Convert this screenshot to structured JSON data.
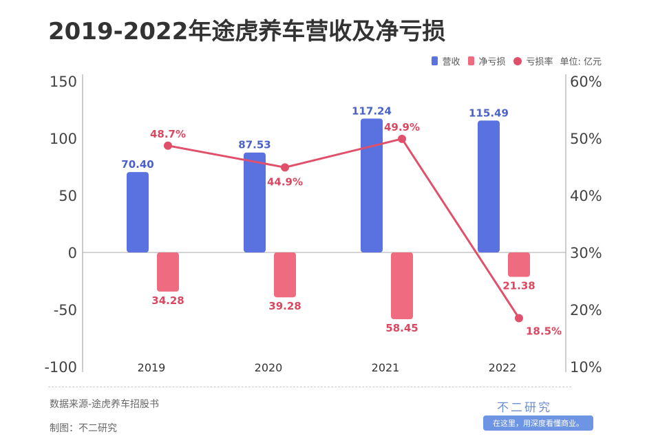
{
  "chart_data": {
    "type": "bar",
    "title": "2019-2022年途虎养车营收及净亏损",
    "categories": [
      "2019",
      "2020",
      "2021",
      "2022"
    ],
    "series": [
      {
        "name": "营收",
        "values": [
          70.4,
          87.53,
          117.24,
          115.49
        ],
        "labels": [
          "70.40",
          "87.53",
          "117.24",
          "115.49"
        ],
        "color": "#5a72e0"
      },
      {
        "name": "净亏损",
        "values": [
          -34.28,
          -39.28,
          -58.45,
          -21.38
        ],
        "labels": [
          "34.28",
          "39.28",
          "58.45",
          "21.38"
        ],
        "color": "#ee6b80"
      },
      {
        "name": "亏损率",
        "type": "line",
        "axis": "right",
        "values": [
          48.7,
          44.9,
          49.9,
          18.5
        ],
        "labels": [
          "48.7%",
          "44.9%",
          "49.9%",
          "18.5%"
        ],
        "color": "#e0506a"
      }
    ],
    "unit": "单位: 亿元",
    "ylim": [
      -100,
      150
    ],
    "yticks": [
      "150",
      "100",
      "50",
      "0",
      "-50",
      "-100"
    ],
    "y2lim": [
      10,
      60
    ],
    "y2ticks": [
      "60%",
      "50%",
      "40%",
      "30%",
      "20%",
      "10%"
    ],
    "legend": "top-right"
  },
  "footer": {
    "source": "数据来源-途虎养车招股书",
    "maker": "制图：不二研究",
    "brand": "不二研究",
    "slogan": "在这里，用深度看懂商业。"
  }
}
